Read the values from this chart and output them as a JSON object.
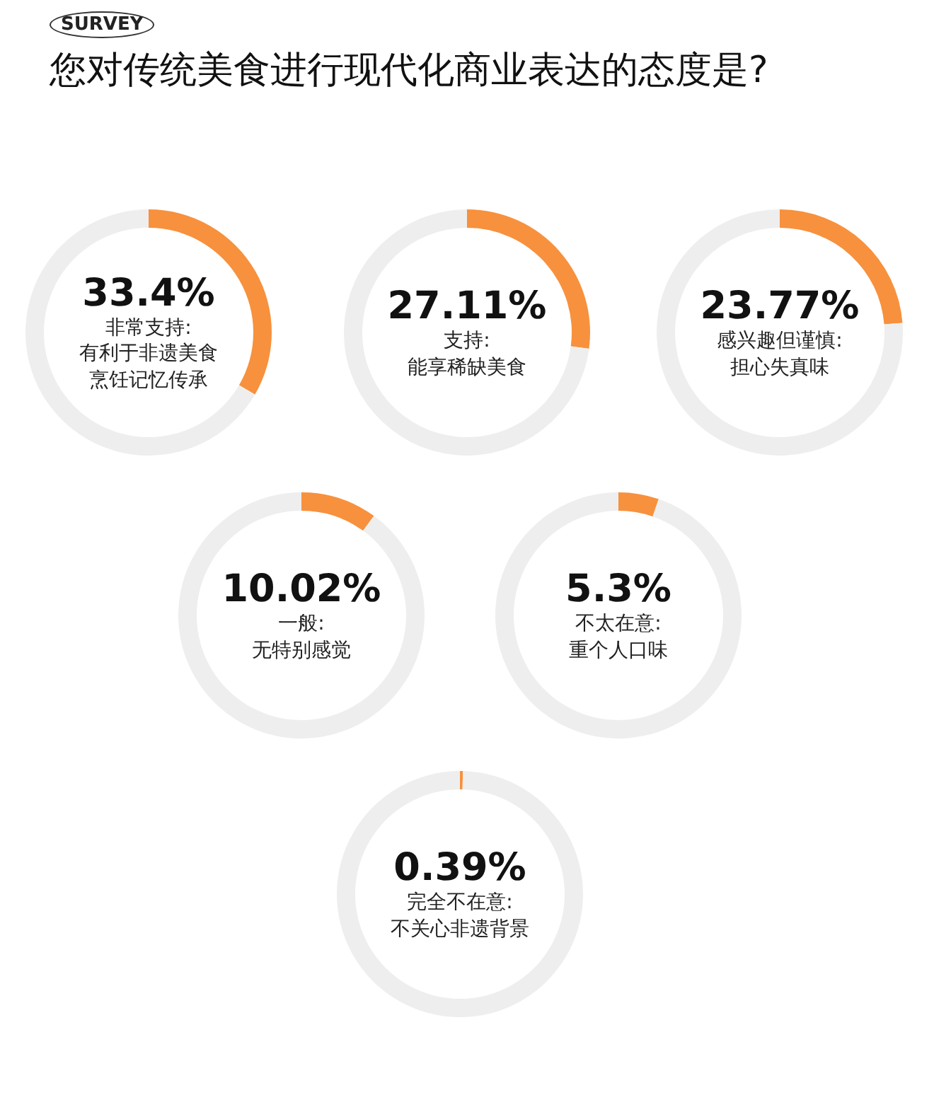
{
  "chart_data": [
    {
      "type": "donut",
      "title": "您对传统美食进行现代化商业表达的态度是?",
      "annotations": [
        "SURVEY"
      ],
      "categories": [
        "非常支持:有利于非遗美食烹饪记忆传承",
        null
      ],
      "values": [
        33.4,
        66.6
      ],
      "colors": [
        "#f7913d",
        "#eeeeee"
      ],
      "value_labels": [
        "33.4%",
        null
      ]
    },
    {
      "type": "donut",
      "categories": [
        "支持:能享稀缺美食",
        null
      ],
      "values": [
        27.11,
        72.89
      ],
      "colors": [
        "#f7913d",
        "#eeeeee"
      ],
      "value_labels": [
        "27.11%",
        null
      ]
    },
    {
      "type": "donut",
      "categories": [
        "感兴趣但谨慎:担心失真味",
        null
      ],
      "values": [
        23.77,
        76.23
      ],
      "colors": [
        "#f7913d",
        "#eeeeee"
      ],
      "value_labels": [
        "23.77%",
        null
      ]
    },
    {
      "type": "donut",
      "categories": [
        "一般:无特别感觉",
        null
      ],
      "values": [
        10.02,
        89.98
      ],
      "colors": [
        "#f7913d",
        "#eeeeee"
      ],
      "value_labels": [
        "10.02%",
        null
      ]
    },
    {
      "type": "donut",
      "categories": [
        "不太在意:重个人口味",
        null
      ],
      "values": [
        5.3,
        94.7
      ],
      "colors": [
        "#f7913d",
        "#eeeeee"
      ],
      "value_labels": [
        "5.3%",
        null
      ]
    },
    {
      "type": "donut",
      "categories": [
        "完全不在意:不关心非遗背景",
        null
      ],
      "values": [
        0.39,
        99.61
      ],
      "colors": [
        "#f7913d",
        "#eeeeee"
      ],
      "value_labels": [
        "0.39%",
        null
      ]
    }
  ]
}
